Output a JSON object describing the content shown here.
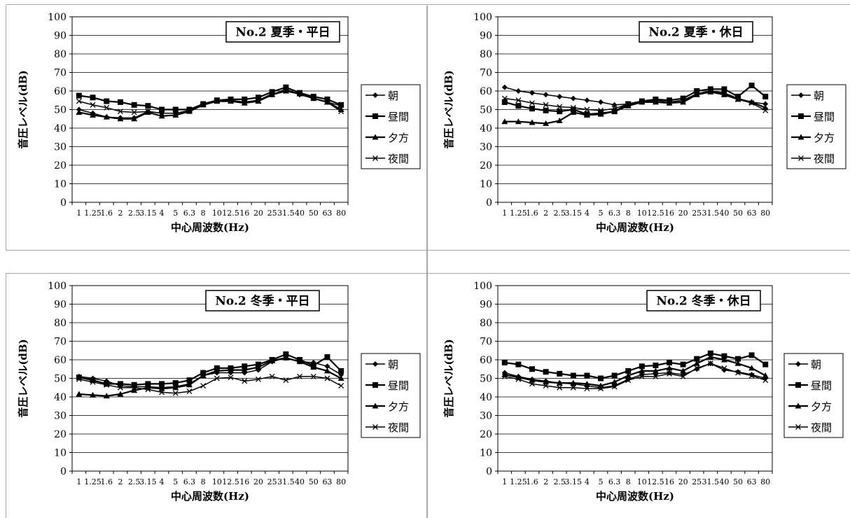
{
  "chart_data": [
    {
      "type": "line",
      "title": "No.2 夏季・平日",
      "xlabel": "中心周波数(Hz)",
      "ylabel": "音圧レベル(dB)",
      "ylim": [
        0,
        100
      ],
      "ytick_step": 10,
      "grid": "horizontal",
      "legend_position": "right",
      "categories": [
        "1",
        "1.25",
        "1.6",
        "2",
        "2.5",
        "3.15",
        "4",
        "5",
        "6.3",
        "8",
        "10",
        "12.5",
        "16",
        "20",
        "25",
        "31.5",
        "40",
        "50",
        "63",
        "80"
      ],
      "series": [
        {
          "name": "朝",
          "marker": "diamond",
          "values": [
            50,
            48,
            46,
            45.5,
            45.5,
            49,
            48,
            48,
            49.5,
            53,
            54.5,
            55,
            54,
            55,
            58,
            61,
            58,
            56,
            54,
            52
          ]
        },
        {
          "name": "昼間",
          "marker": "square",
          "values": [
            57.5,
            56.5,
            54.5,
            54,
            52.5,
            52,
            50,
            50,
            50,
            53,
            55,
            55.5,
            55.5,
            56.5,
            59.5,
            62,
            59,
            57,
            55.5,
            52.5
          ]
        },
        {
          "name": "夕方",
          "marker": "triangle",
          "values": [
            48.5,
            47,
            46,
            45,
            45,
            48.5,
            46.5,
            47,
            49,
            52.5,
            54.5,
            54.5,
            53.5,
            54.5,
            58,
            60,
            58.5,
            56,
            54,
            50
          ]
        },
        {
          "name": "夜間",
          "marker": "x",
          "values": [
            54.5,
            52.5,
            51,
            49,
            48.5,
            49,
            48,
            48,
            49.5,
            53,
            54.5,
            55,
            54,
            55,
            58.5,
            60,
            58.5,
            56,
            54,
            49
          ]
        }
      ]
    },
    {
      "type": "line",
      "title": "No.2 夏季・休日",
      "xlabel": "中心周波数(Hz)",
      "ylabel": "音圧レベル(dB)",
      "ylim": [
        0,
        100
      ],
      "ytick_step": 10,
      "grid": "horizontal",
      "legend_position": "right",
      "categories": [
        "1",
        "1.25",
        "1.6",
        "2",
        "2.5",
        "3.15",
        "4",
        "5",
        "6.3",
        "8",
        "10",
        "12.5",
        "16",
        "20",
        "25",
        "31.5",
        "40",
        "50",
        "63",
        "80"
      ],
      "series": [
        {
          "name": "朝",
          "marker": "diamond",
          "values": [
            62,
            60,
            59,
            58,
            57,
            56,
            55,
            54,
            52.5,
            53,
            54,
            55,
            54,
            55,
            58.5,
            60,
            59,
            56,
            54,
            53
          ]
        },
        {
          "name": "昼間",
          "marker": "square",
          "values": [
            54,
            52,
            50.5,
            49.5,
            49,
            50,
            47.5,
            48,
            49,
            53,
            54.5,
            55.5,
            55,
            56,
            60,
            61,
            61,
            57,
            63,
            57
          ]
        },
        {
          "name": "夕方",
          "marker": "triangle",
          "values": [
            43.5,
            43.5,
            43,
            42.5,
            44,
            48.5,
            47,
            47.5,
            49,
            52,
            54,
            54,
            53.5,
            54,
            58,
            59.5,
            58,
            55.5,
            54,
            51
          ]
        },
        {
          "name": "夜間",
          "marker": "x",
          "values": [
            56,
            55,
            53.5,
            52.5,
            51.5,
            51,
            50,
            49.5,
            50.5,
            53,
            54.5,
            55,
            54,
            55,
            58.5,
            60,
            58.5,
            55.5,
            53.5,
            49.5
          ]
        }
      ]
    },
    {
      "type": "line",
      "title": "No.2 冬季・平日",
      "xlabel": "中心周波数(Hz)",
      "ylabel": "音圧レベル(dB)",
      "ylim": [
        0,
        100
      ],
      "ytick_step": 10,
      "grid": "horizontal",
      "legend_position": "right",
      "categories": [
        "1",
        "1.25",
        "1.6",
        "2",
        "2.5",
        "3.15",
        "4",
        "5",
        "6.3",
        "8",
        "10",
        "12.5",
        "16",
        "20",
        "25",
        "31.5",
        "40",
        "50",
        "63",
        "80"
      ],
      "series": [
        {
          "name": "朝",
          "marker": "diamond",
          "values": [
            51,
            50,
            48.5,
            46,
            45.5,
            45.5,
            45,
            45.5,
            47,
            51.5,
            53,
            53,
            53,
            54.5,
            59,
            61,
            59,
            58.5,
            56.5,
            52
          ]
        },
        {
          "name": "昼間",
          "marker": "square",
          "values": [
            50.5,
            49,
            47,
            47,
            46.5,
            47,
            47,
            47.5,
            49,
            53,
            55.5,
            55.5,
            56.5,
            57.5,
            60,
            63,
            60,
            57,
            61.5,
            54
          ]
        },
        {
          "name": "夕方",
          "marker": "triangle",
          "values": [
            41.5,
            41,
            40.5,
            41.5,
            43.5,
            45,
            44.5,
            45,
            46.5,
            51.5,
            54,
            54.5,
            54.5,
            56,
            59.5,
            61,
            59,
            56,
            54,
            50
          ]
        },
        {
          "name": "夜間",
          "marker": "x",
          "values": [
            49.5,
            48,
            46.5,
            45,
            45,
            44,
            42.5,
            42,
            43,
            46,
            50,
            50.5,
            48.5,
            49.5,
            51,
            49,
            51,
            51,
            50,
            46
          ]
        }
      ]
    },
    {
      "type": "line",
      "title": "No.2 冬季・休日",
      "xlabel": "中心周波数(Hz)",
      "ylabel": "音圧レベル(dB)",
      "ylim": [
        0,
        100
      ],
      "ytick_step": 10,
      "grid": "horizontal",
      "legend_position": "right",
      "categories": [
        "1",
        "1.25",
        "1.6",
        "2",
        "2.5",
        "3.15",
        "4",
        "5",
        "6.3",
        "8",
        "10",
        "12.5",
        "16",
        "20",
        "25",
        "31.5",
        "40",
        "50",
        "63",
        "80"
      ],
      "series": [
        {
          "name": "朝",
          "marker": "diamond",
          "values": [
            53,
            51,
            49.5,
            48.5,
            47.5,
            47,
            46,
            45,
            46,
            49.5,
            52,
            52.5,
            53,
            52,
            55,
            58,
            54.5,
            53.5,
            52,
            50
          ]
        },
        {
          "name": "昼間",
          "marker": "square",
          "values": [
            58.5,
            57.5,
            55,
            53.5,
            52.5,
            51.5,
            51.5,
            50,
            51.5,
            54,
            56.5,
            57,
            58.5,
            57.5,
            60.5,
            63.5,
            62,
            60.5,
            62.5,
            57.5
          ]
        },
        {
          "name": "夕方",
          "marker": "triangle",
          "values": [
            52,
            50.5,
            49,
            48,
            47.5,
            47.5,
            47,
            46,
            48,
            51.5,
            54,
            54,
            55.5,
            54,
            58,
            61.5,
            60,
            58,
            55.5,
            51.5
          ]
        },
        {
          "name": "夜間",
          "marker": "x",
          "values": [
            51,
            49.5,
            47,
            46,
            45,
            45,
            44.5,
            44.5,
            45.5,
            49,
            51,
            51,
            52.5,
            51,
            55.5,
            58,
            55.5,
            53,
            51.5,
            49
          ]
        }
      ]
    }
  ]
}
